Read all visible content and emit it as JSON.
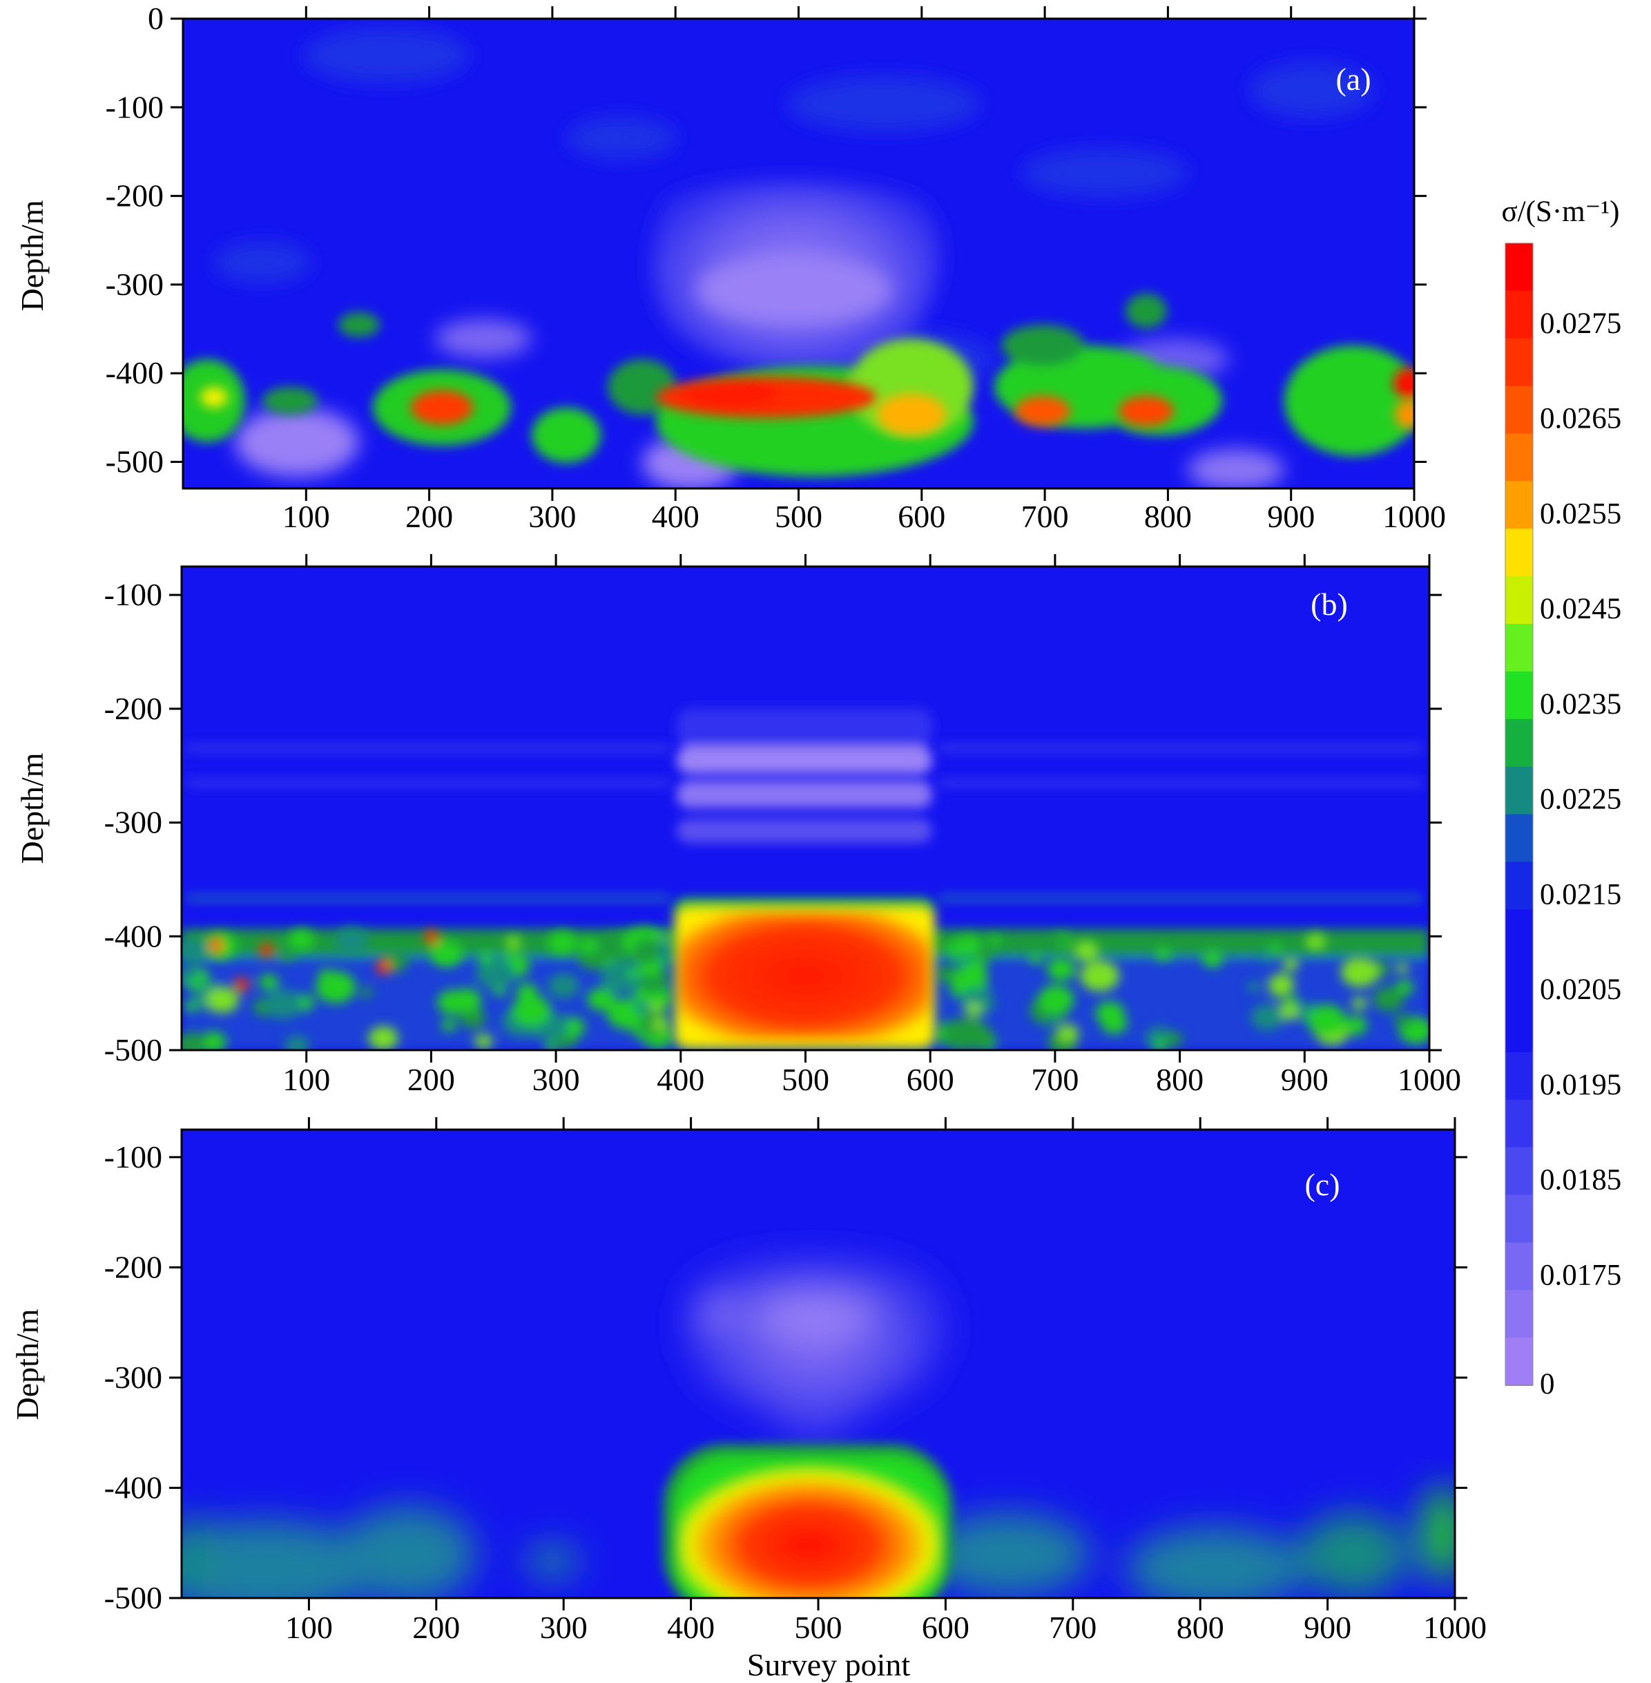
{
  "colors": {
    "background_blue": "#1414f0",
    "low_purple": "#9a78f4",
    "mid_green": "#1ed21e",
    "high_red": "#ff1a00"
  },
  "colorbar": {
    "title": "σ/(S·m⁻¹)",
    "labels": [
      "0.0275",
      "0.0265",
      "0.0255",
      "0.0245",
      "0.0235",
      "0.0225",
      "0.0215",
      "0.0205",
      "0.0195",
      "0.0185",
      "0.0175",
      "0"
    ],
    "colors": [
      "#ff0000",
      "#ff1a00",
      "#ff3300",
      "#ff5500",
      "#ff7700",
      "#ffa000",
      "#ffe000",
      "#c8f000",
      "#66f020",
      "#22e022",
      "#16b040",
      "#148a80",
      "#1450c8",
      "#1428e6",
      "#1414f0",
      "#1414f0",
      "#1414f0",
      "#2424f0",
      "#3636f0",
      "#4a48f0",
      "#6058f2",
      "#7868f4",
      "#8c74f4",
      "#a07ef6"
    ]
  },
  "chart_data": [
    {
      "panel": "(a)",
      "type": "heatmap",
      "xlabel": "",
      "ylabel": "Depth/m",
      "xticks": [
        "100",
        "200",
        "300",
        "400",
        "500",
        "600",
        "700",
        "800",
        "900",
        "1000"
      ],
      "yticks": [
        "0",
        "-100",
        "-200",
        "-300",
        "-400",
        "-500"
      ],
      "xlim": [
        0,
        1000
      ],
      "ylim": [
        -530,
        0
      ],
      "anomalies": [
        {
          "kind": "low",
          "x": [
            380,
            600
          ],
          "depth": [
            -180,
            -330
          ]
        },
        {
          "kind": "high",
          "x": [
            400,
            560
          ],
          "depth": [
            -390,
            -450
          ]
        },
        {
          "kind": "high",
          "x": [
            180,
            260
          ],
          "depth": [
            -400,
            -470
          ]
        }
      ]
    },
    {
      "panel": "(b)",
      "type": "heatmap",
      "xlabel": "",
      "ylabel": "Depth/m",
      "xticks": [
        "100",
        "200",
        "300",
        "400",
        "500",
        "600",
        "700",
        "800",
        "900",
        "1000"
      ],
      "yticks": [
        "-100",
        "-200",
        "-300",
        "-400",
        "-500"
      ],
      "xlim": [
        0,
        1000
      ],
      "ylim": [
        -500,
        -75
      ],
      "anomalies": [
        {
          "kind": "low",
          "x": [
            400,
            600
          ],
          "depth": [
            -210,
            -310
          ]
        },
        {
          "kind": "high",
          "x": [
            400,
            600
          ],
          "depth": [
            -380,
            -500
          ]
        }
      ]
    },
    {
      "panel": "(c)",
      "type": "heatmap",
      "xlabel": "Survey point",
      "ylabel": "Depth/m",
      "xticks": [
        "100",
        "200",
        "300",
        "400",
        "500",
        "600",
        "700",
        "800",
        "900",
        "1000"
      ],
      "yticks": [
        "-100",
        "-200",
        "-300",
        "-400",
        "-500"
      ],
      "xlim": [
        0,
        1000
      ],
      "ylim": [
        -500,
        -75
      ],
      "anomalies": [
        {
          "kind": "low",
          "x": [
            400,
            600
          ],
          "depth": [
            -190,
            -330
          ]
        },
        {
          "kind": "high",
          "x": [
            400,
            600
          ],
          "depth": [
            -370,
            -500
          ]
        }
      ]
    }
  ]
}
